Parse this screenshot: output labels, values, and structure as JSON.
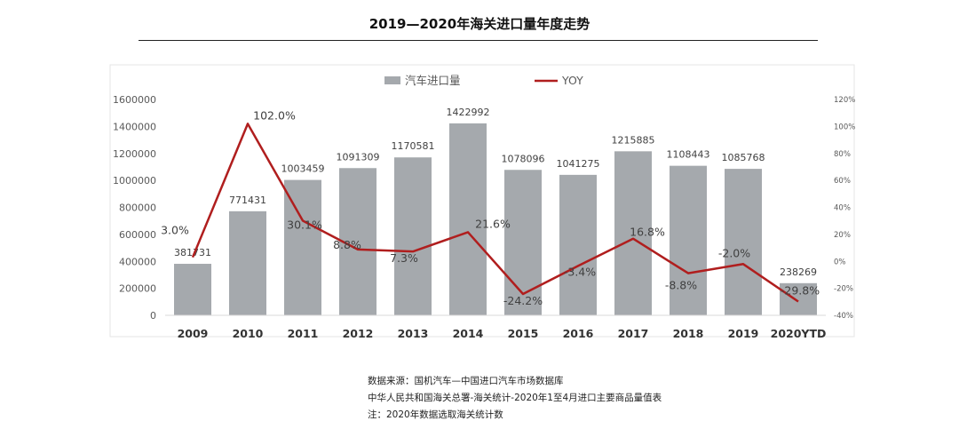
{
  "title": "2019—2020年海关进口量年度走势",
  "chart_data": {
    "type": "bar",
    "categories": [
      "2009",
      "2010",
      "2011",
      "2012",
      "2013",
      "2014",
      "2015",
      "2016",
      "2017",
      "2018",
      "2019",
      "2020YTD"
    ],
    "series": [
      {
        "name": "汽车进口量",
        "type": "bar",
        "axis": "left",
        "values": [
          381731,
          771431,
          1003459,
          1091309,
          1170581,
          1422992,
          1078096,
          1041275,
          1215885,
          1108443,
          1085768,
          238269
        ],
        "labels": [
          "381731",
          "771431",
          "1003459",
          "1091309",
          "1170581",
          "1422992",
          "1078096",
          "1041275",
          "1215885",
          "1108443",
          "1085768",
          "238269"
        ]
      },
      {
        "name": "YOY",
        "type": "line",
        "axis": "right",
        "values": [
          3.0,
          102.0,
          30.1,
          8.8,
          7.3,
          21.6,
          -24.2,
          -3.4,
          16.8,
          -8.8,
          -2.0,
          -29.8
        ],
        "labels": [
          "3.0%",
          "102.0%",
          "30.1%",
          "8.8%",
          "7.3%",
          "21.6%",
          "-24.2%",
          "-3.4%",
          "16.8%",
          "-8.8%",
          "-2.0%",
          "-29.8%"
        ]
      }
    ],
    "y_left": {
      "lim": [
        0,
        1600000
      ],
      "ticks": [
        "0",
        "200000",
        "400000",
        "600000",
        "800000",
        "1000000",
        "1200000",
        "1400000",
        "1600000"
      ]
    },
    "y_right": {
      "lim": [
        -40,
        120
      ],
      "ticks": [
        "-40%",
        "-20%",
        "0%",
        "20%",
        "40%",
        "60%",
        "80%",
        "100%",
        "120%"
      ]
    },
    "legend_position": "top",
    "grid": false,
    "colors": {
      "bar": "#a5a9ad",
      "line": "#b01e1e"
    }
  },
  "footnotes": [
    "数据来源：国机汽车—中国进口汽车市场数据库",
    "中华人民共和国海关总署-海关统计-2020年1至4月进口主要商品量值表",
    "注：2020年数据选取海关统计数"
  ]
}
